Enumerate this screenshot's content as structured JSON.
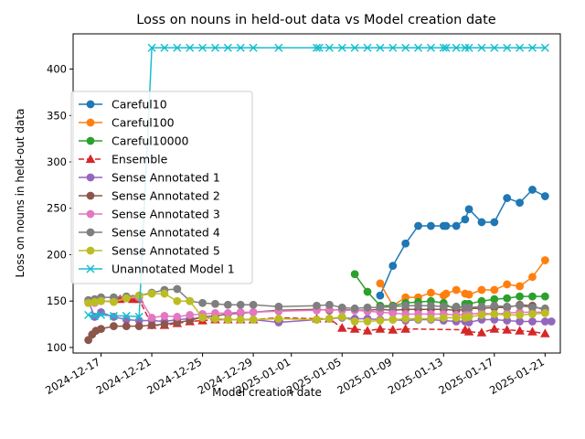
{
  "chart_data": {
    "type": "line",
    "title": "Loss on nouns in held-out data vs Model creation date",
    "xlabel": "Model creation date",
    "ylabel": "Loss on nouns in held-out data",
    "x_unit": "days since 2024-12-17",
    "xlim": [
      -2.2,
      36.2
    ],
    "ylim": [
      94,
      438
    ],
    "yticks": [
      100,
      150,
      200,
      250,
      300,
      350,
      400
    ],
    "xticks": [
      {
        "day": 0,
        "label": "2024-12-17"
      },
      {
        "day": 4,
        "label": "2024-12-21"
      },
      {
        "day": 8,
        "label": "2024-12-25"
      },
      {
        "day": 12,
        "label": "2024-12-29"
      },
      {
        "day": 15,
        "label": "2025-01-01"
      },
      {
        "day": 19,
        "label": "2025-01-05"
      },
      {
        "day": 23,
        "label": "2025-01-09"
      },
      {
        "day": 27,
        "label": "2025-01-13"
      },
      {
        "day": 31,
        "label": "2025-01-17"
      },
      {
        "day": 35,
        "label": "2025-01-21"
      }
    ],
    "legend_position": "center-left",
    "series": [
      {
        "name": "Careful10",
        "color": "#1f77b4",
        "marker": "circle",
        "dash": "solid",
        "x": [
          22,
          23,
          24,
          25,
          26,
          27,
          27.2,
          28,
          28.7,
          29,
          30,
          31,
          32,
          33,
          34,
          35
        ],
        "y": [
          156,
          188,
          212,
          231,
          231,
          231,
          231,
          231,
          238,
          249,
          235,
          235,
          261,
          256,
          270,
          263
        ]
      },
      {
        "name": "Careful100",
        "color": "#ff7f0e",
        "marker": "circle",
        "dash": "solid",
        "x": [
          22,
          23,
          24,
          25,
          26,
          27,
          27.2,
          28,
          28.7,
          29,
          30,
          31,
          32,
          33,
          34,
          35
        ],
        "y": [
          169,
          145,
          154,
          154,
          159,
          156,
          158,
          162,
          158,
          157,
          162,
          162,
          168,
          166,
          176,
          194
        ]
      },
      {
        "name": "Careful10000",
        "color": "#2ca02c",
        "marker": "circle",
        "dash": "solid",
        "x": [
          20,
          21,
          22,
          23,
          24,
          25,
          26,
          27,
          28,
          28.7,
          29,
          30,
          31,
          32,
          33,
          34,
          35
        ],
        "y": [
          179,
          160,
          145,
          145,
          148,
          149,
          150,
          148,
          140,
          147,
          147,
          150,
          152,
          153,
          155,
          155,
          155
        ]
      },
      {
        "name": "Ensemble",
        "color": "#d62728",
        "marker": "triangle",
        "dash": "dashed",
        "x": [
          1.5,
          2.5,
          3,
          4,
          5,
          6,
          7,
          8,
          9,
          10,
          11,
          12,
          14,
          17,
          18,
          19,
          20,
          21,
          22,
          23,
          24,
          28.7,
          29,
          30,
          31,
          32,
          33,
          34,
          35
        ],
        "y": [
          152,
          152,
          152,
          124,
          124,
          126,
          128,
          129,
          130,
          130,
          130,
          130,
          132,
          131,
          131,
          121,
          120,
          118,
          120,
          119,
          120,
          119,
          117,
          116,
          120,
          119,
          118,
          117,
          115
        ]
      },
      {
        "name": "Sense Annotated 1",
        "color": "#9467bd",
        "marker": "circle",
        "dash": "solid",
        "x": [
          -1,
          -0.5,
          0,
          1,
          2,
          3,
          4,
          5,
          6,
          7,
          8,
          9,
          10,
          11,
          12,
          14,
          17,
          18,
          19,
          20,
          21,
          22,
          23,
          24,
          25,
          26,
          27,
          28,
          28.7,
          29,
          30,
          31,
          32,
          33,
          34,
          35,
          35.5
        ],
        "y": [
          150,
          133,
          138,
          133,
          130,
          129,
          129,
          128,
          130,
          131,
          132,
          131,
          130,
          130,
          130,
          127,
          130,
          131,
          132,
          131,
          131,
          130,
          130,
          129,
          130,
          130,
          129,
          128,
          128,
          127,
          130,
          130,
          129,
          128,
          128,
          128,
          128
        ]
      },
      {
        "name": "Sense Annotated 2",
        "color": "#8c564b",
        "marker": "circle",
        "dash": "solid",
        "x": [
          -1,
          -0.7,
          -0.4,
          0,
          1,
          2,
          3,
          4,
          5,
          6,
          7,
          8,
          9,
          10,
          11,
          12,
          14,
          17,
          18,
          19,
          20,
          21,
          22,
          23,
          24,
          25,
          26,
          27,
          28,
          28.7,
          29,
          30,
          31,
          32,
          33,
          34,
          35
        ],
        "y": [
          108,
          114,
          118,
          120,
          123,
          123,
          123,
          124,
          125,
          127,
          129,
          133,
          134,
          136,
          137,
          138,
          140,
          141,
          140,
          141,
          140,
          140,
          141,
          140,
          141,
          141,
          141,
          141,
          140,
          141,
          142,
          142,
          143,
          143,
          146,
          145,
          140
        ]
      },
      {
        "name": "Sense Annotated 3",
        "color": "#e377c2",
        "marker": "circle",
        "dash": "solid",
        "x": [
          -1,
          -0.5,
          0,
          1,
          2,
          3,
          4,
          5,
          6,
          7,
          8,
          9,
          10,
          11,
          12,
          14,
          17,
          18,
          19,
          20,
          21,
          22,
          23,
          24,
          25,
          26,
          27,
          28,
          28.7,
          29,
          30,
          31,
          32,
          33,
          34,
          35
        ],
        "y": [
          148,
          148,
          150,
          150,
          153,
          154,
          132,
          134,
          133,
          135,
          136,
          137,
          137,
          138,
          138,
          139,
          140,
          141,
          140,
          140,
          139,
          138,
          137,
          136,
          136,
          136,
          136,
          135,
          135,
          136,
          137,
          136,
          137,
          138,
          138,
          138
        ]
      },
      {
        "name": "Sense Annotated 4",
        "color": "#7f7f7f",
        "marker": "circle",
        "dash": "solid",
        "x": [
          -1,
          -0.5,
          0,
          1,
          2,
          3,
          4,
          5,
          6,
          7,
          8,
          9,
          10,
          11,
          12,
          14,
          17,
          18,
          19,
          20,
          21,
          22,
          23,
          24,
          25,
          26,
          27,
          28,
          28.7,
          29,
          30,
          31,
          32,
          33,
          34,
          35
        ],
        "y": [
          151,
          152,
          154,
          154,
          155,
          156,
          159,
          162,
          163,
          150,
          148,
          147,
          146,
          146,
          146,
          144,
          145,
          146,
          143,
          142,
          143,
          143,
          144,
          145,
          145,
          145,
          144,
          144,
          143,
          143,
          144,
          145,
          144,
          145,
          143,
          142
        ]
      },
      {
        "name": "Sense Annotated 5",
        "color": "#bcbd22",
        "marker": "circle",
        "dash": "solid",
        "x": [
          -1,
          -0.5,
          0,
          1,
          2,
          3,
          4,
          5,
          6,
          7,
          8,
          9,
          10,
          11,
          12,
          14,
          17,
          18,
          19,
          20,
          21,
          22,
          23,
          24,
          25,
          26,
          27,
          28,
          28.7,
          29,
          30,
          31,
          32,
          33,
          34,
          35
        ],
        "y": [
          148,
          149,
          150,
          149,
          153,
          156,
          158,
          158,
          150,
          150,
          132,
          131,
          130,
          130,
          130,
          131,
          130,
          131,
          133,
          128,
          128,
          129,
          130,
          131,
          131,
          131,
          132,
          132,
          132,
          133,
          135,
          136,
          135,
          135,
          136,
          137
        ]
      },
      {
        "name": "Unannotated Model 1",
        "color": "#17becf",
        "marker": "x",
        "dash": "solid",
        "x": [
          -1,
          -0.5,
          0,
          1,
          2,
          3,
          4,
          5,
          6,
          7,
          8,
          9,
          10,
          11,
          12,
          14,
          17,
          17.2,
          18,
          19,
          20,
          21,
          22,
          23,
          24,
          25,
          26,
          27,
          27.2,
          28,
          28.7,
          29,
          30,
          31,
          32,
          33,
          34,
          35
        ],
        "y": [
          135,
          134,
          135,
          134,
          134,
          133,
          423,
          423,
          423,
          423,
          423,
          423,
          423,
          423,
          423,
          423,
          423,
          423,
          423,
          423,
          423,
          423,
          423,
          423,
          423,
          423,
          423,
          423,
          423,
          423,
          423,
          423,
          423,
          423,
          423,
          423,
          423,
          423
        ]
      }
    ]
  }
}
